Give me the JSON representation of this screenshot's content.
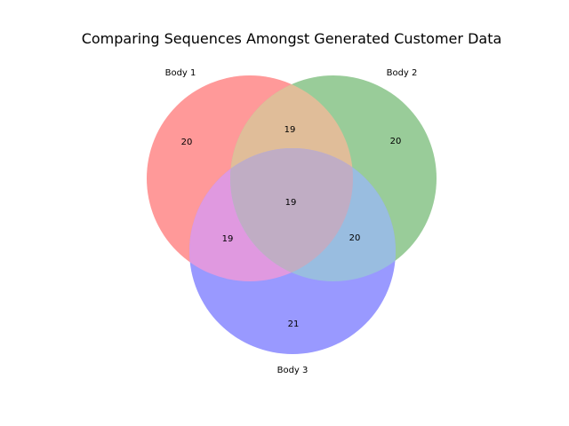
{
  "title": "Comparing Sequences Amongst Generated Customer Data",
  "sets": [
    {
      "name": "Body 1",
      "color": "#ff9999"
    },
    {
      "name": "Body 2",
      "color": "#99cc99"
    },
    {
      "name": "Body 3",
      "color": "#9999ff"
    }
  ],
  "regions": {
    "only_1": "20",
    "only_2": "20",
    "only_3": "21",
    "1_and_2": "19",
    "1_and_3": "19",
    "2_and_3": "20",
    "all_three": "19"
  },
  "region_colors": {
    "1_and_2": "#e0bd99",
    "1_and_3": "#e099e0",
    "2_and_3": "#99bde0",
    "all_three": "#c0adc4"
  }
}
